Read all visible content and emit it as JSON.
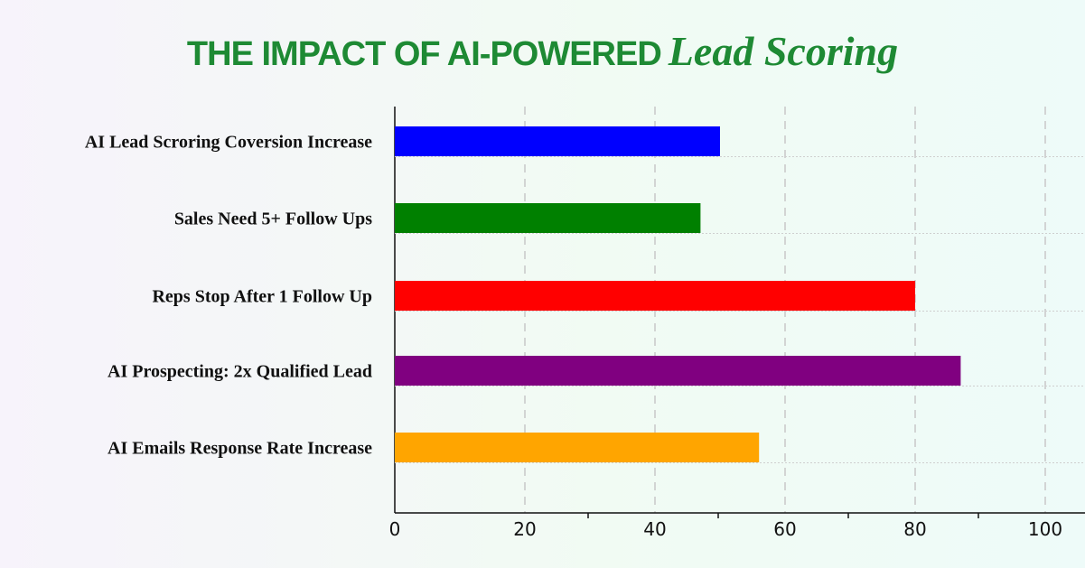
{
  "title": {
    "prefix": "THE IMPACT OF AI-POWERED",
    "emphasis": "Lead Scoring",
    "color": "#1e8a34"
  },
  "chart_data": {
    "type": "bar",
    "orientation": "horizontal",
    "categories": [
      "AI Lead Scroring Coversion Increase",
      "Sales Need 5+ Follow Ups",
      "Reps Stop After 1 Follow Up",
      "AI Prospecting: 2x Qualified Lead",
      "AI Emails Response Rate Increase"
    ],
    "values": [
      50,
      47,
      80,
      87,
      56
    ],
    "colors": [
      "#0000ff",
      "#008000",
      "#ff0000",
      "#800080",
      "#ffa500"
    ],
    "xticks": [
      0,
      20,
      40,
      60,
      80,
      100
    ],
    "xlim": [
      0,
      106
    ],
    "grid": "vertical dashed",
    "title": "THE IMPACT OF AI-POWERED Lead Scoring",
    "xlabel": "",
    "ylabel": ""
  }
}
